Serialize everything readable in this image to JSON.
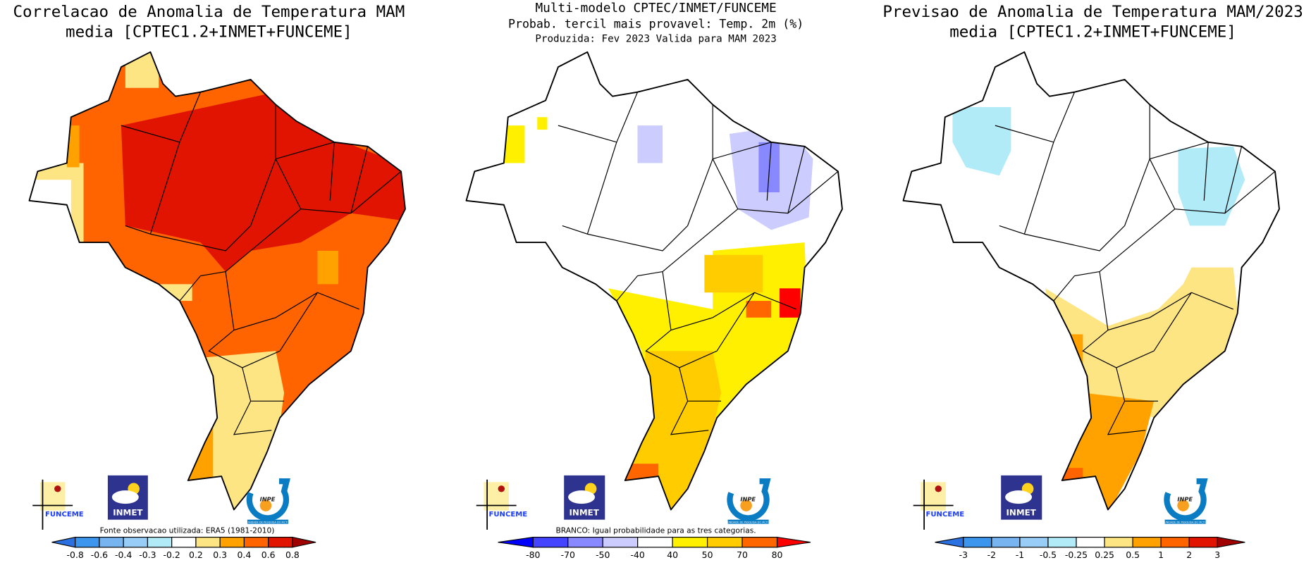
{
  "colors": {
    "blue_dark": "#2a70e0",
    "blue1": "#3d96ee",
    "blue2": "#78b4f0",
    "blue3": "#98cdf7",
    "blue4": "#b1ebf8",
    "white": "#ffffff",
    "yellow_light": "#fde584",
    "orange_light": "#ffa200",
    "orange": "#ff6400",
    "red": "#e01400",
    "dark_red": "#a00000",
    "prob_blue": "#0000ff",
    "prob_blue1": "#4444ff",
    "prob_blue2": "#8888ff",
    "prob_lavender": "#ccccff",
    "prob_yellow": "#fff000",
    "prob_gold": "#ffcc00",
    "prob_orange": "#ff6600",
    "prob_red": "#ff0000"
  },
  "panels": [
    {
      "title_lines": [
        "Correlacao de Anomalia de Temperatura MAM",
        "media [CPTEC1.2+INMET+FUNCEME]"
      ],
      "note": "Fonte observacao utilizada: ERA5 (1981-2010)",
      "colorbar": {
        "labels": [
          "-0.8",
          "-0.6",
          "-0.4",
          "-0.3",
          "-0.2",
          "0.2",
          "0.3",
          "0.4",
          "0.6",
          "0.8"
        ],
        "colors": [
          "#3d96ee",
          "#78b4f0",
          "#98cdf7",
          "#b1ebf8",
          "#ffffff",
          "#fde584",
          "#ffa200",
          "#ff6400",
          "#e01400"
        ],
        "low_arrow": "#2a70e0",
        "high_arrow": "#a00000"
      }
    },
    {
      "title_lines": [
        "Multi-modelo CPTEC/INMET/FUNCEME",
        "Probab. tercil mais provavel: Temp. 2m (%)",
        "Produzida: Fev 2023  Valida para MAM 2023"
      ],
      "note": "BRANCO: Igual probabilidade para as tres categorias.",
      "colorbar": {
        "labels": [
          "-80",
          "-70",
          "-50",
          "-40",
          "40",
          "50",
          "70",
          "80"
        ],
        "colors": [
          "#4444ff",
          "#8888ff",
          "#ccccff",
          "#ffffff",
          "#fff000",
          "#ffcc00",
          "#ff6600"
        ],
        "low_arrow": "#0000ff",
        "high_arrow": "#ff0000"
      }
    },
    {
      "title_lines": [
        "Previsao de Anomalia de Temperatura MAM/2023",
        "media [CPTEC1.2+INMET+FUNCEME]"
      ],
      "note": "",
      "colorbar": {
        "labels": [
          "-3",
          "-2",
          "-1",
          "-0.5",
          "-0.25",
          "0.25",
          "0.5",
          "1",
          "2",
          "3"
        ],
        "colors": [
          "#3d96ee",
          "#78b4f0",
          "#98cdf7",
          "#b1ebf8",
          "#ffffff",
          "#fde584",
          "#ffa200",
          "#ff6400",
          "#e01400"
        ],
        "low_arrow": "#2a70e0",
        "high_arrow": "#a00000"
      }
    }
  ],
  "logos": {
    "funceme": "FUNCEME",
    "inmet": "INMET",
    "inpe": "INPE",
    "inpe_sub": "UNIDADE DE PESQUISA DO MCTI"
  }
}
